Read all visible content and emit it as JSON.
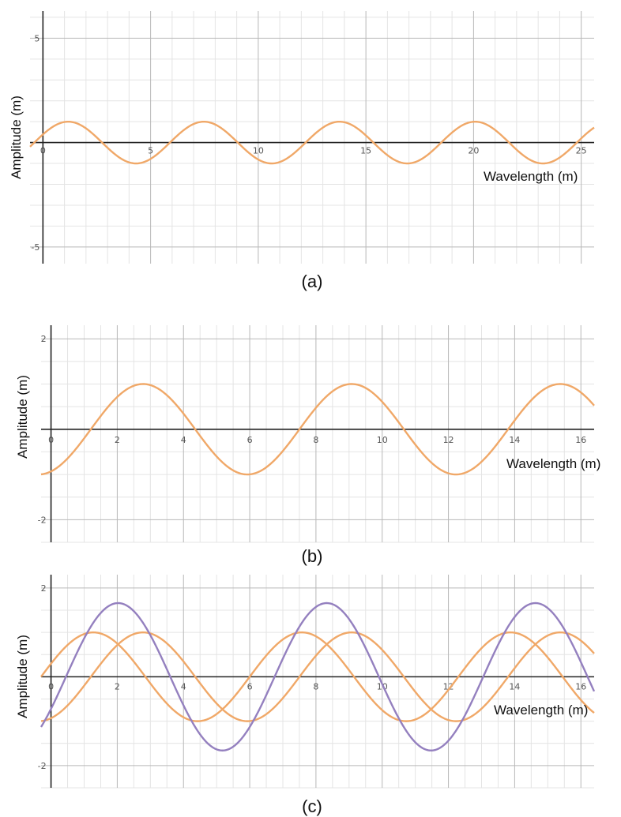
{
  "chart_data": [
    {
      "type": "line",
      "panel_label": "(a)",
      "xlabel": "Wavelength (m)",
      "ylabel": "Amplitude (m)",
      "xlim": [
        -0.6,
        25.6
      ],
      "ylim": [
        -5.8,
        6.3
      ],
      "x_major_ticks": [
        0,
        5,
        10,
        15,
        20,
        25
      ],
      "x_tick_labels": [
        "0",
        "5",
        "10",
        "15",
        "20",
        "25"
      ],
      "x_minor_step": 1,
      "y_major_ticks": [
        -5,
        5
      ],
      "y_tick_labels": [
        "-5",
        "5"
      ],
      "y_minor_step": 1,
      "grid": true,
      "series": [
        {
          "color": "#f0a868",
          "function": "sine",
          "amplitude": 1,
          "period": 6.3,
          "phase": 0.4
        }
      ]
    },
    {
      "type": "line",
      "panel_label": "(b)",
      "xlabel": "Wavelength (m)",
      "ylabel": "Amplitude (m)",
      "xlim": [
        -0.3,
        16.4
      ],
      "ylim": [
        -2.5,
        2.3
      ],
      "x_major_ticks": [
        0,
        2,
        4,
        6,
        8,
        10,
        12,
        14,
        16
      ],
      "x_tick_labels": [
        "0",
        "2",
        "4",
        "6",
        "8",
        "10",
        "12",
        "14",
        "16"
      ],
      "x_minor_step": 0.5,
      "y_major_ticks": [
        -2,
        2
      ],
      "y_tick_labels": [
        "-2",
        "2"
      ],
      "y_minor_step": 0.5,
      "grid": true,
      "series": [
        {
          "color": "#f0a868",
          "function": "sine",
          "amplitude": 1,
          "period": 6.3,
          "phase": -1.2
        }
      ]
    },
    {
      "type": "line",
      "panel_label": "(c)",
      "xlabel": "Wavelength (m)",
      "ylabel": "Amplitude (m)",
      "xlim": [
        -0.3,
        16.4
      ],
      "ylim": [
        -2.5,
        2.3
      ],
      "x_major_ticks": [
        0,
        2,
        4,
        6,
        8,
        10,
        12,
        14,
        16
      ],
      "x_tick_labels": [
        "0",
        "2",
        "4",
        "6",
        "8",
        "10",
        "12",
        "14",
        "16"
      ],
      "x_minor_step": 0.5,
      "y_major_ticks": [
        -2,
        2
      ],
      "y_tick_labels": [
        "-2",
        "2"
      ],
      "y_minor_step": 0.5,
      "grid": true,
      "series": [
        {
          "color": "#f0a868",
          "function": "sine",
          "amplitude": 1,
          "period": 6.3,
          "phase": 0.3
        },
        {
          "color": "#f0a868",
          "function": "sine",
          "amplitude": 1,
          "period": 6.3,
          "phase": -1.2
        },
        {
          "color": "#9480bf",
          "function": "sine",
          "amplitude": 1.66,
          "period": 6.3,
          "phase": -0.45
        }
      ]
    }
  ]
}
